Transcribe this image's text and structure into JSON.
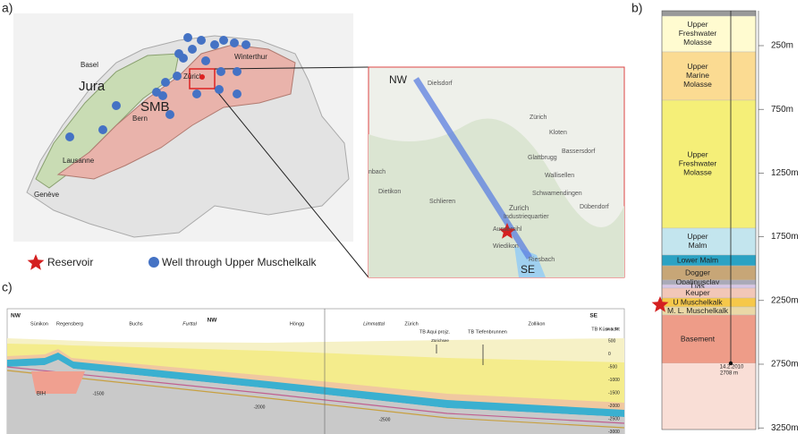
{
  "panels": {
    "a": "a)",
    "b": "b)",
    "c": "c)"
  },
  "map": {
    "labels": [
      "Basel",
      "Jura",
      "SMB",
      "Winterthur",
      "Zürich",
      "Bern",
      "Lausanne",
      "Genève"
    ]
  },
  "legend": {
    "reservoir": "Reservoir",
    "well": "Well through Upper Muschelkalk"
  },
  "inset": {
    "labels": [
      "NW",
      "SE",
      "Dielsdorf",
      "Zürich",
      "Kloten",
      "Bassersdorf",
      "Glattbrugg",
      "Wallisellen",
      "Schwamendingen",
      "Dübendorf",
      "Dietikon",
      "Schlieren",
      "Zurich",
      "Industriequartier",
      "Aussersihl",
      "Wiedikon",
      "Riesbach",
      "nbach"
    ]
  },
  "column": {
    "layers": [
      "Upper Freshwater Molasse",
      "Upper Marine Molasse",
      "Upper Freshwater Molasse",
      "Upper Malm",
      "Lower Malm",
      "Dogger",
      "Opalinusclay",
      "Lias",
      "Keuper",
      "U Muschelkalk",
      "M. L. Muschelkalk",
      "Basement"
    ],
    "depths": [
      "250m",
      "750m",
      "1250m",
      "1750m",
      "2250m",
      "2750m",
      "3250m"
    ],
    "well_date": "14.2.2010",
    "well_depth": "2708 m"
  },
  "section": {
    "labels": [
      "NW",
      "Sünikon",
      "Regensberg",
      "Buchs",
      "Furttal",
      "NW",
      "Höngg",
      "Limmattal",
      "Zürich",
      "TB Aqui projz.",
      "Zürichsee",
      "TB Tiefenbrunnen",
      "Zollikon",
      "SE",
      "TB Küsnacht",
      "BIH"
    ],
    "elev_unit": "m ü. M.",
    "elev_ticks": [
      "500",
      "0",
      "-500",
      "-1000",
      "-1500",
      "-2000",
      "-2500",
      "-3000"
    ],
    "depth_labels": [
      "-1500",
      "-2000",
      "-2500"
    ]
  }
}
